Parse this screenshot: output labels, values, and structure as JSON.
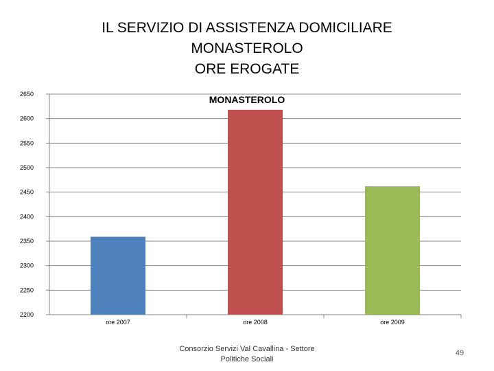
{
  "slide": {
    "title_lines": [
      "IL SERVIZIO DI ASSISTENZA DOMICILIARE",
      "MONASTEROLO",
      "ORE EROGATE"
    ],
    "footer_lines": [
      "Consorzio Servizi Val Cavallina - Settore",
      "Politiche Sociali"
    ],
    "page_number": "49"
  },
  "chart_data": {
    "type": "bar",
    "title": "MONASTEROLO",
    "xlabel": "",
    "ylabel": "",
    "categories": [
      "ore 2007",
      "ore 2008",
      "ore 2009"
    ],
    "values": [
      2359,
      2618,
      2462
    ],
    "colors": [
      "#4F81BD",
      "#C0504D",
      "#9BBB59"
    ],
    "ylim": [
      2200,
      2650
    ],
    "yticks": [
      2200,
      2250,
      2300,
      2350,
      2400,
      2450,
      2500,
      2550,
      2600,
      2650
    ],
    "grid": true,
    "legend": "none"
  }
}
